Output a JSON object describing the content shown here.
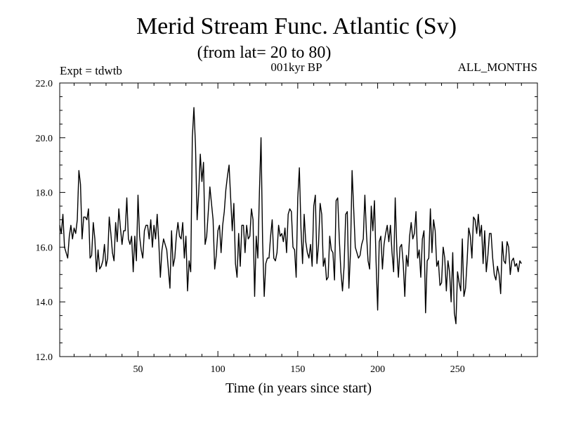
{
  "chart_data": {
    "type": "line",
    "title": "Merid Stream Func. Atlantic (Sv)",
    "subtitle": "(from lat= 20 to 80)",
    "experiment": "Expt = tdwtb",
    "period": "001kyr BP",
    "months": "ALL_MONTHS",
    "xlabel": "Time (in years since start)",
    "ylabel": "",
    "xlim": [
      1,
      300
    ],
    "ylim": [
      12.0,
      22.0
    ],
    "x_ticks": [
      50,
      100,
      150,
      200,
      250
    ],
    "y_ticks": [
      12.0,
      14.0,
      16.0,
      18.0,
      20.0,
      22.0
    ],
    "y_tick_labels": [
      "12.0",
      "14.0",
      "16.0",
      "18.0",
      "20.0",
      "22.0"
    ],
    "grid": false,
    "series": [
      {
        "name": "Merid Stream Func. Atlantic",
        "color": "#000000",
        "x_start": 1,
        "x_step": 1,
        "values": [
          16.8,
          16.5,
          17.2,
          16.0,
          15.8,
          15.6,
          16.4,
          16.8,
          16.3,
          16.7,
          16.5,
          17.0,
          18.8,
          18.3,
          16.3,
          17.1,
          17.1,
          17.0,
          17.4,
          15.6,
          15.7,
          16.9,
          16.3,
          15.1,
          15.9,
          15.2,
          15.3,
          15.5,
          16.1,
          15.3,
          15.6,
          17.1,
          16.5,
          15.8,
          15.5,
          16.9,
          16.2,
          17.4,
          16.7,
          16.1,
          16.6,
          16.6,
          17.8,
          16.3,
          16.1,
          16.4,
          15.1,
          16.4,
          15.5,
          17.9,
          16.4,
          15.9,
          15.6,
          16.6,
          16.8,
          16.8,
          16.3,
          17.0,
          16.0,
          16.8,
          16.3,
          17.2,
          16.2,
          14.9,
          15.9,
          16.3,
          16.1,
          15.9,
          15.2,
          14.5,
          16.6,
          15.3,
          15.6,
          16.4,
          16.9,
          16.4,
          16.3,
          16.9,
          15.6,
          16.4,
          14.4,
          15.5,
          15.1,
          20.0,
          21.1,
          19.7,
          17.0,
          18.0,
          19.4,
          18.4,
          19.1,
          16.1,
          16.4,
          17.3,
          18.2,
          17.6,
          17.0,
          15.2,
          15.7,
          16.6,
          16.8,
          15.8,
          16.8,
          17.3,
          18.1,
          18.6,
          19.0,
          17.8,
          16.6,
          17.6,
          15.4,
          14.9,
          16.5,
          15.3,
          16.8,
          16.8,
          15.8,
          16.8,
          16.3,
          16.4,
          17.4,
          17.0,
          14.2,
          16.4,
          15.6,
          18.0,
          20.0,
          16.2,
          14.2,
          15.4,
          15.6,
          15.6,
          16.4,
          17.0,
          15.6,
          15.5,
          15.8,
          16.8,
          16.4,
          16.5,
          16.2,
          16.7,
          15.8,
          17.2,
          17.4,
          17.3,
          16.0,
          15.9,
          14.9,
          17.8,
          18.9,
          16.7,
          15.4,
          17.2,
          16.2,
          15.8,
          15.6,
          16.1,
          15.3,
          17.5,
          17.9,
          15.4,
          16.1,
          17.6,
          17.2,
          15.3,
          15.6,
          14.8,
          14.9,
          16.4,
          15.9,
          15.8,
          14.8,
          17.7,
          17.8,
          16.3,
          15.1,
          14.4,
          15.3,
          17.2,
          17.3,
          14.5,
          15.8,
          18.8,
          17.4,
          16.0,
          15.8,
          15.6,
          15.7,
          16.1,
          16.3,
          17.9,
          16.5,
          15.5,
          15.2,
          17.5,
          16.6,
          17.7,
          15.5,
          13.7,
          16.2,
          16.4,
          15.2,
          16.1,
          16.5,
          16.8,
          16.2,
          16.8,
          15.8,
          15.1,
          17.8,
          15.9,
          14.9,
          16.0,
          16.1,
          15.4,
          14.2,
          15.7,
          15.3,
          16.4,
          16.9,
          16.3,
          16.5,
          17.3,
          15.6,
          15.9,
          14.9,
          16.3,
          16.6,
          13.6,
          15.5,
          15.6,
          17.4,
          15.8,
          17.0,
          16.6,
          15.3,
          15.5,
          14.6,
          14.7,
          16.0,
          15.6,
          14.4,
          15.5,
          15.1,
          14.0,
          15.8,
          13.6,
          13.2,
          15.1,
          14.7,
          14.4,
          16.3,
          14.2,
          14.5,
          15.5,
          16.7,
          16.4,
          15.6,
          17.1,
          17.0,
          16.5,
          17.2,
          16.4,
          16.8,
          15.4,
          16.6,
          15.1,
          15.7,
          16.5,
          16.5,
          15.6,
          15.0,
          14.8,
          15.3,
          15.0,
          14.3,
          16.2,
          15.5,
          15.4,
          16.2,
          16.0,
          15.0,
          15.5,
          15.6,
          15.3,
          15.4,
          15.1,
          15.5,
          15.4
        ]
      }
    ]
  }
}
